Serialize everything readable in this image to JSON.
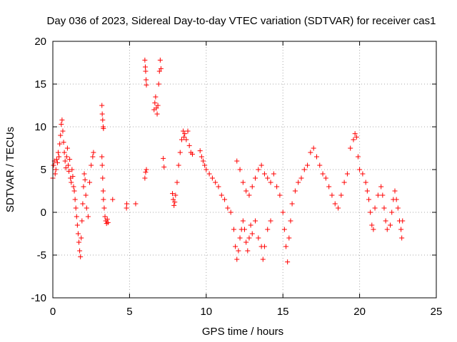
{
  "chart_data": {
    "type": "scatter",
    "title": "Day 036 of 2023, Sidereal Day-to-day VTEC variation (SDTVAR) for receiver cas1",
    "xlabel": "GPS time / hours",
    "ylabel": "SDTVAR / TECUs",
    "xlim": [
      0,
      25
    ],
    "ylim": [
      -10,
      20
    ],
    "xticks": [
      0,
      5,
      10,
      15,
      20,
      25
    ],
    "yticks": [
      -10,
      -5,
      0,
      5,
      10,
      15,
      20
    ],
    "xtick_labels": [
      "0",
      "5",
      "10",
      "15",
      "20",
      "25"
    ],
    "ytick_labels": [
      "-10",
      "-5",
      "0",
      "5",
      "10",
      "15",
      "20"
    ],
    "grid": true,
    "marker": "+",
    "series": [
      {
        "name": "SDTVAR",
        "color": "#ff0000",
        "points": [
          [
            0.0,
            4.0
          ],
          [
            0.05,
            5.5
          ],
          [
            0.1,
            6.0
          ],
          [
            0.15,
            4.5
          ],
          [
            0.2,
            5.0
          ],
          [
            0.25,
            6.2
          ],
          [
            0.3,
            5.8
          ],
          [
            0.35,
            7.0
          ],
          [
            0.4,
            6.5
          ],
          [
            0.45,
            8.0
          ],
          [
            0.5,
            9.0
          ],
          [
            0.55,
            10.3
          ],
          [
            0.6,
            10.8
          ],
          [
            0.65,
            9.5
          ],
          [
            0.7,
            8.2
          ],
          [
            0.75,
            7.0
          ],
          [
            0.8,
            6.0
          ],
          [
            0.85,
            5.2
          ],
          [
            0.9,
            6.5
          ],
          [
            0.95,
            7.5
          ],
          [
            1.0,
            5.5
          ],
          [
            1.05,
            4.8
          ],
          [
            1.1,
            6.2
          ],
          [
            1.15,
            4.0
          ],
          [
            1.2,
            3.5
          ],
          [
            1.25,
            5.0
          ],
          [
            1.3,
            4.2
          ],
          [
            1.35,
            3.0
          ],
          [
            1.4,
            2.5
          ],
          [
            1.45,
            1.5
          ],
          [
            1.5,
            0.5
          ],
          [
            1.55,
            -0.5
          ],
          [
            1.6,
            -1.5
          ],
          [
            1.65,
            -2.5
          ],
          [
            1.7,
            -3.5
          ],
          [
            1.75,
            -4.5
          ],
          [
            1.8,
            -5.2
          ],
          [
            1.85,
            -3.0
          ],
          [
            1.9,
            -1.0
          ],
          [
            1.95,
            1.0
          ],
          [
            2.0,
            3.0
          ],
          [
            2.05,
            4.5
          ],
          [
            2.1,
            3.8
          ],
          [
            2.15,
            2.0
          ],
          [
            2.2,
            0.5
          ],
          [
            2.3,
            -0.5
          ],
          [
            2.4,
            3.5
          ],
          [
            2.5,
            5.5
          ],
          [
            2.6,
            6.5
          ],
          [
            2.65,
            7.0
          ],
          [
            3.2,
            12.5
          ],
          [
            3.22,
            11.5
          ],
          [
            3.25,
            10.8
          ],
          [
            3.28,
            10.0
          ],
          [
            3.3,
            9.8
          ],
          [
            3.2,
            6.5
          ],
          [
            3.22,
            5.5
          ],
          [
            3.25,
            4.0
          ],
          [
            3.28,
            2.5
          ],
          [
            3.3,
            1.5
          ],
          [
            3.35,
            0.5
          ],
          [
            3.4,
            -0.5
          ],
          [
            3.45,
            -1.0
          ],
          [
            3.5,
            -1.3
          ],
          [
            3.55,
            -0.8
          ],
          [
            3.6,
            -1.2
          ],
          [
            3.9,
            1.5
          ],
          [
            4.8,
            0.5
          ],
          [
            4.82,
            1.0
          ],
          [
            5.4,
            1.0
          ],
          [
            6.0,
            17.8
          ],
          [
            6.03,
            17.0
          ],
          [
            6.05,
            16.5
          ],
          [
            6.08,
            15.5
          ],
          [
            6.1,
            14.9
          ],
          [
            6.0,
            4.0
          ],
          [
            6.05,
            4.7
          ],
          [
            6.1,
            5.0
          ],
          [
            6.6,
            12.0
          ],
          [
            6.65,
            12.8
          ],
          [
            6.7,
            13.5
          ],
          [
            6.75,
            12.2
          ],
          [
            6.8,
            11.5
          ],
          [
            6.85,
            12.5
          ],
          [
            6.9,
            15.0
          ],
          [
            6.95,
            16.5
          ],
          [
            7.0,
            17.8
          ],
          [
            7.05,
            16.8
          ],
          [
            7.2,
            6.3
          ],
          [
            7.25,
            5.3
          ],
          [
            7.8,
            2.2
          ],
          [
            7.85,
            1.5
          ],
          [
            7.9,
            0.8
          ],
          [
            7.95,
            1.2
          ],
          [
            8.0,
            2.0
          ],
          [
            8.1,
            3.5
          ],
          [
            8.2,
            5.5
          ],
          [
            8.3,
            7.0
          ],
          [
            8.4,
            8.5
          ],
          [
            8.5,
            9.5
          ],
          [
            8.55,
            8.8
          ],
          [
            8.6,
            9.2
          ],
          [
            8.7,
            8.5
          ],
          [
            8.8,
            9.5
          ],
          [
            8.9,
            7.8
          ],
          [
            9.0,
            7.0
          ],
          [
            9.1,
            6.8
          ],
          [
            9.6,
            7.2
          ],
          [
            9.7,
            6.5
          ],
          [
            9.8,
            6.0
          ],
          [
            9.9,
            5.5
          ],
          [
            10.0,
            5.0
          ],
          [
            10.2,
            4.5
          ],
          [
            10.4,
            4.0
          ],
          [
            10.6,
            3.5
          ],
          [
            10.8,
            3.0
          ],
          [
            11.0,
            2.0
          ],
          [
            11.2,
            1.5
          ],
          [
            11.4,
            0.5
          ],
          [
            11.6,
            0.0
          ],
          [
            11.8,
            -2.0
          ],
          [
            11.9,
            -4.0
          ],
          [
            12.0,
            -5.5
          ],
          [
            12.1,
            -4.5
          ],
          [
            12.2,
            -3.0
          ],
          [
            12.3,
            -2.0
          ],
          [
            12.4,
            -1.0
          ],
          [
            12.5,
            -2.0
          ],
          [
            12.6,
            -3.5
          ],
          [
            12.7,
            -4.5
          ],
          [
            12.8,
            -3.0
          ],
          [
            12.9,
            -1.5
          ],
          [
            13.0,
            -2.5
          ],
          [
            13.2,
            -1.0
          ],
          [
            13.4,
            -3.0
          ],
          [
            13.6,
            -4.0
          ],
          [
            13.7,
            -5.5
          ],
          [
            13.8,
            -4.0
          ],
          [
            14.0,
            -2.0
          ],
          [
            14.2,
            -1.0
          ],
          [
            12.0,
            6.0
          ],
          [
            12.2,
            5.0
          ],
          [
            12.4,
            3.5
          ],
          [
            12.6,
            2.5
          ],
          [
            12.8,
            2.0
          ],
          [
            13.0,
            3.0
          ],
          [
            13.2,
            4.0
          ],
          [
            13.4,
            5.0
          ],
          [
            13.6,
            5.5
          ],
          [
            13.8,
            4.5
          ],
          [
            14.0,
            4.0
          ],
          [
            14.2,
            3.5
          ],
          [
            14.4,
            4.5
          ],
          [
            14.6,
            3.0
          ],
          [
            14.8,
            2.0
          ],
          [
            15.0,
            0.0
          ],
          [
            15.1,
            -2.0
          ],
          [
            15.2,
            -4.0
          ],
          [
            15.3,
            -5.8
          ],
          [
            15.4,
            -3.0
          ],
          [
            15.5,
            -1.0
          ],
          [
            15.6,
            1.0
          ],
          [
            15.8,
            2.5
          ],
          [
            16.0,
            3.5
          ],
          [
            16.2,
            4.0
          ],
          [
            16.4,
            5.0
          ],
          [
            16.6,
            5.5
          ],
          [
            16.8,
            7.0
          ],
          [
            17.0,
            7.5
          ],
          [
            17.2,
            6.5
          ],
          [
            17.4,
            5.5
          ],
          [
            17.6,
            4.5
          ],
          [
            17.8,
            4.0
          ],
          [
            18.0,
            3.0
          ],
          [
            18.2,
            2.0
          ],
          [
            18.4,
            1.0
          ],
          [
            18.6,
            0.5
          ],
          [
            18.8,
            2.0
          ],
          [
            19.0,
            3.5
          ],
          [
            19.2,
            4.5
          ],
          [
            19.4,
            7.5
          ],
          [
            19.6,
            8.5
          ],
          [
            19.7,
            9.2
          ],
          [
            19.8,
            8.8
          ],
          [
            19.9,
            6.5
          ],
          [
            20.0,
            5.0
          ],
          [
            20.2,
            4.5
          ],
          [
            20.4,
            3.5
          ],
          [
            20.5,
            2.5
          ],
          [
            20.6,
            1.5
          ],
          [
            20.7,
            0.0
          ],
          [
            20.8,
            -1.5
          ],
          [
            20.9,
            -2.0
          ],
          [
            21.0,
            0.5
          ],
          [
            21.2,
            2.0
          ],
          [
            21.4,
            3.0
          ],
          [
            21.5,
            2.0
          ],
          [
            21.6,
            0.5
          ],
          [
            21.7,
            -1.0
          ],
          [
            21.8,
            -2.0
          ],
          [
            22.0,
            -1.5
          ],
          [
            22.1,
            0.0
          ],
          [
            22.2,
            1.5
          ],
          [
            22.3,
            2.5
          ],
          [
            22.4,
            1.5
          ],
          [
            22.5,
            0.5
          ],
          [
            22.6,
            -1.0
          ],
          [
            22.7,
            -2.0
          ],
          [
            22.75,
            -3.0
          ],
          [
            22.8,
            -1.0
          ]
        ]
      }
    ]
  }
}
